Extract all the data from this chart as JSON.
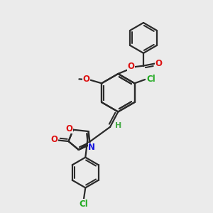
{
  "bg": "#ebebeb",
  "bond_color": "#2a2a2a",
  "lw": 1.6,
  "colors": {
    "O": "#dd1111",
    "N": "#1111dd",
    "Cl": "#22aa22",
    "H": "#44aa44"
  },
  "fs": 8.5
}
